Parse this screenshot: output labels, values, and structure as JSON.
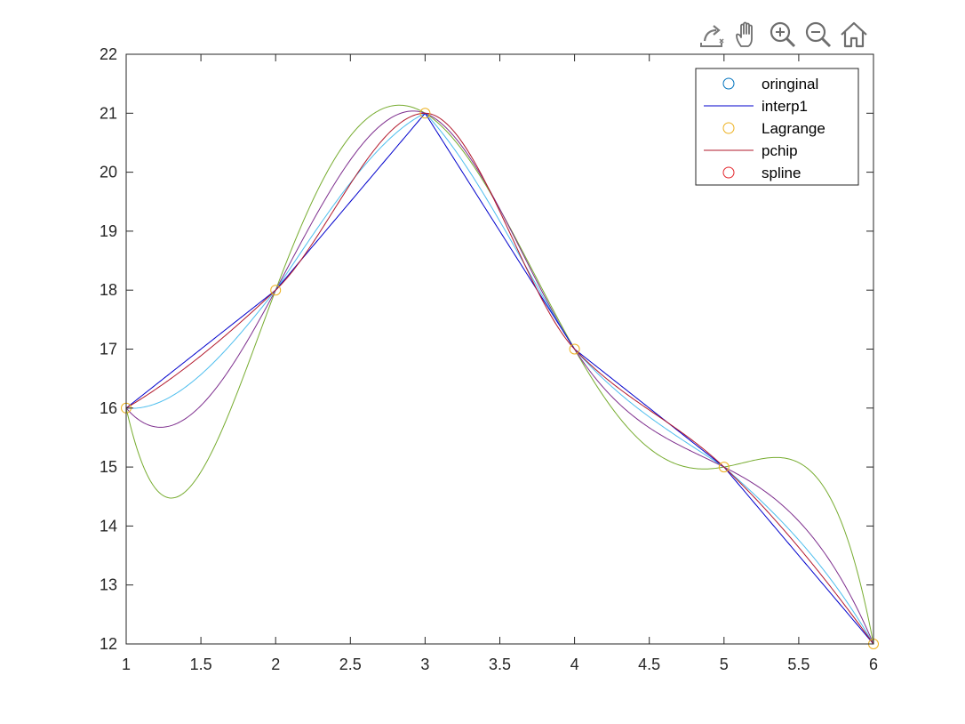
{
  "toolbar": {
    "buttons": [
      {
        "name": "export-icon"
      },
      {
        "name": "pan-hand-icon"
      },
      {
        "name": "zoom-in-icon"
      },
      {
        "name": "zoom-out-icon"
      },
      {
        "name": "home-icon"
      }
    ]
  },
  "chart_data": {
    "type": "line",
    "title": "",
    "xlabel": "",
    "ylabel": "",
    "xlim": [
      1,
      6
    ],
    "ylim": [
      12,
      22
    ],
    "xticks": [
      1,
      1.5,
      2,
      2.5,
      3,
      3.5,
      4,
      4.5,
      5,
      5.5,
      6
    ],
    "yticks": [
      12,
      13,
      14,
      15,
      16,
      17,
      18,
      19,
      20,
      21,
      22
    ],
    "grid": false,
    "legend_position": "top-right",
    "x": [
      1,
      2,
      3,
      4,
      5,
      6
    ],
    "y": [
      16,
      18,
      21,
      17,
      15,
      12
    ],
    "series": [
      {
        "name": "oringinal",
        "kind": "markers",
        "marker": "circle",
        "color": "#0072BD"
      },
      {
        "name": "interp1",
        "kind": "line",
        "method": "linear",
        "color": "#0000CC"
      },
      {
        "name": "Lagrange",
        "kind": "markers",
        "marker": "circle",
        "color": "#EDB120"
      },
      {
        "name": "pchip",
        "kind": "line",
        "method": "pchip",
        "color": "#B2182B"
      },
      {
        "name": "spline",
        "kind": "markers",
        "marker": "circle",
        "color": "#E3262C"
      }
    ],
    "extra_curves": [
      {
        "method": "lagrange",
        "color": "#77AC30"
      },
      {
        "method": "spline",
        "color": "#7E2F8E"
      },
      {
        "method": "interpolated",
        "color": "#4DBEEE"
      }
    ]
  }
}
